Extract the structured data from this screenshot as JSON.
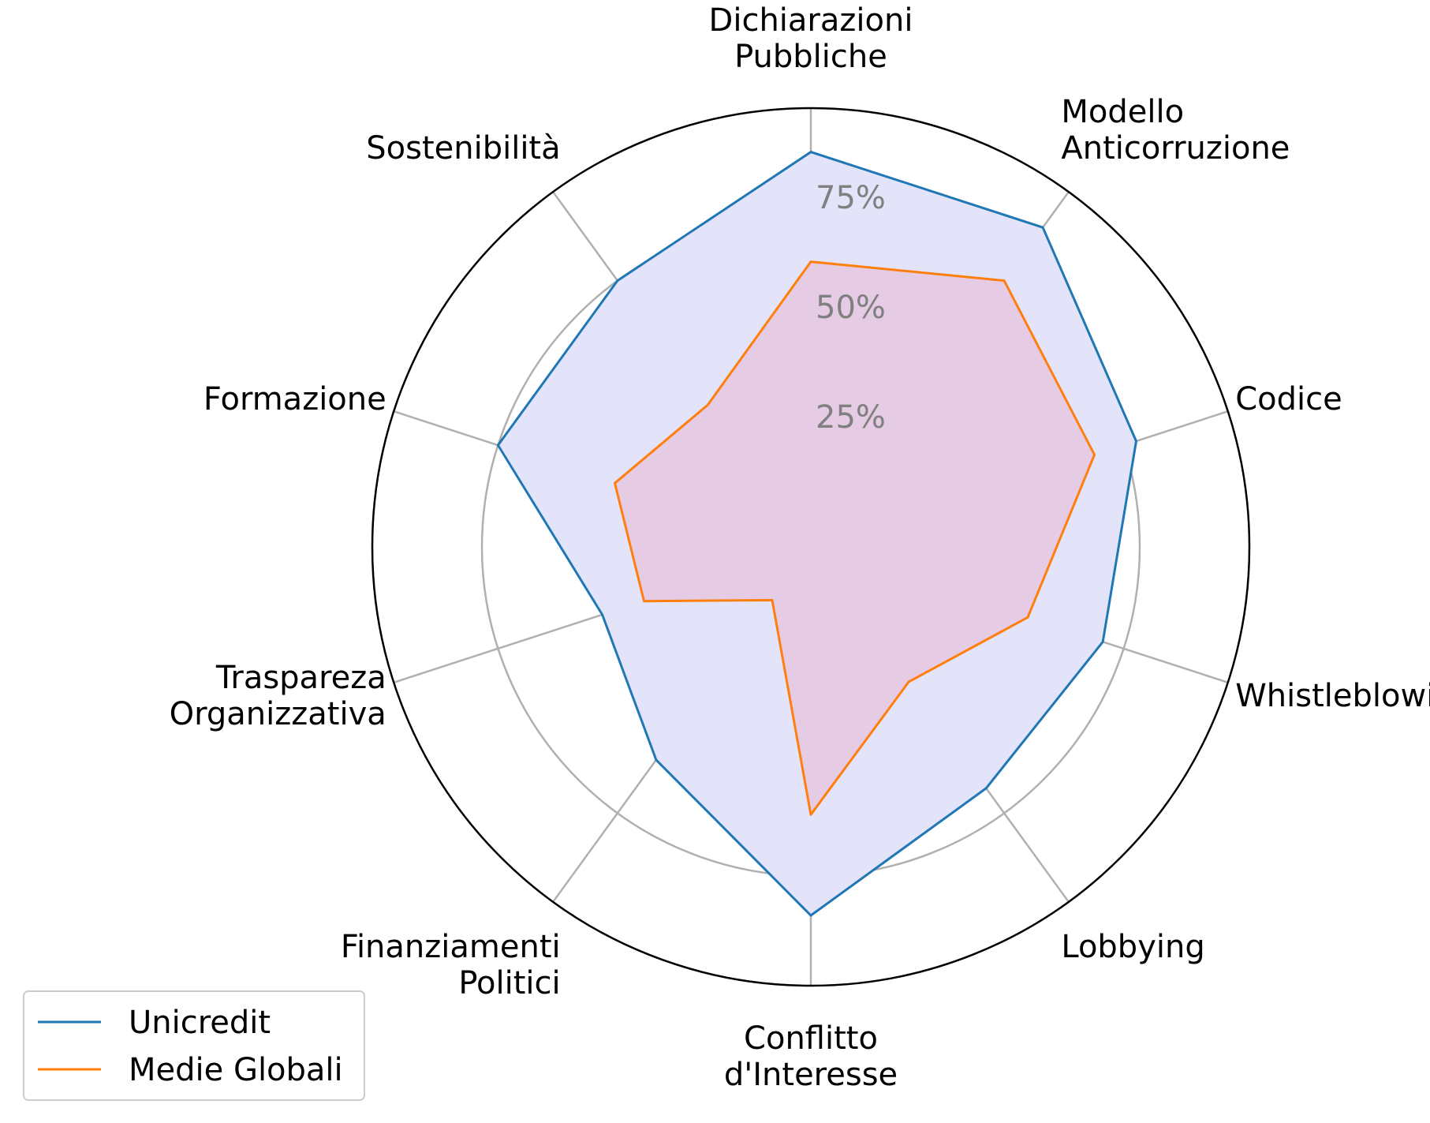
{
  "chart_data": {
    "type": "radar",
    "categories": [
      "Dichiarazioni\nPubbliche",
      "Modello\nAnticorruzione",
      "Codice",
      "Whistleblowing",
      "Lobbying",
      "Conflitto\nd'Interesse",
      "Finanziamenti\nPolitici",
      "Traspareza\nOrganizzativa",
      "Formazione",
      "Sostenibilità"
    ],
    "series": [
      {
        "name": "Unicredit",
        "color": "#1f77b4",
        "fill": "#e3e3fa",
        "values": [
          90,
          90,
          78,
          70,
          68,
          84,
          60,
          50,
          75,
          75
        ]
      },
      {
        "name": "Medie Globali",
        "color": "#ff7f0e",
        "fill": "#e6cbe4",
        "values": [
          65,
          75,
          68,
          52,
          38,
          61,
          15,
          40,
          47,
          40
        ]
      }
    ],
    "radial_ticks": [
      25,
      50,
      75
    ],
    "radial_tick_labels": [
      "25%",
      "50%",
      "75%"
    ],
    "rlim": [
      0,
      100
    ],
    "grid": true,
    "legend": "lower-left"
  }
}
